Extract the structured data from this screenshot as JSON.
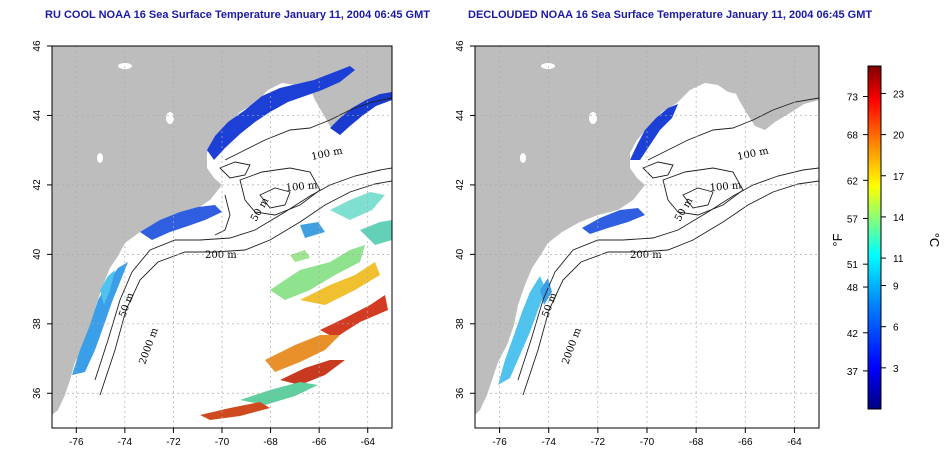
{
  "titles": {
    "left": "RU COOL NOAA 16 Sea Surface Temperature January 11, 2004 06:45 GMT",
    "right": "DECLOUDED NOAA 16 Sea Surface Temperature January 11, 2004 06:45 GMT"
  },
  "axes": {
    "lon_ticks": [
      "-76",
      "-74",
      "-72",
      "-70",
      "-68",
      "-66",
      "-64"
    ],
    "lat_ticks": [
      "36",
      "38",
      "40",
      "42",
      "44",
      "46"
    ],
    "lon_range": [
      -77,
      -63
    ],
    "lat_range": [
      35,
      46
    ]
  },
  "contour_labels": [
    "100 m",
    "100 m",
    "50 m",
    "200 m",
    "50 m",
    "2000 m"
  ],
  "colorbar": {
    "fahrenheit_ticks": [
      "73",
      "68",
      "62",
      "57",
      "51",
      "48",
      "42",
      "37"
    ],
    "celsius_ticks": [
      "23",
      "20",
      "17",
      "14",
      "11",
      "9",
      "6",
      "3"
    ],
    "fahrenheit_unit": "°F",
    "celsius_unit": "°C",
    "colors": [
      "#00007f",
      "#0000ff",
      "#007fff",
      "#00ffff",
      "#7fff7f",
      "#ffff00",
      "#ff7f00",
      "#ff0000",
      "#7f0000"
    ]
  },
  "colors": {
    "land": "#bdbdbd",
    "grid": "#aaaaaa",
    "title": "#1a1aa6"
  }
}
